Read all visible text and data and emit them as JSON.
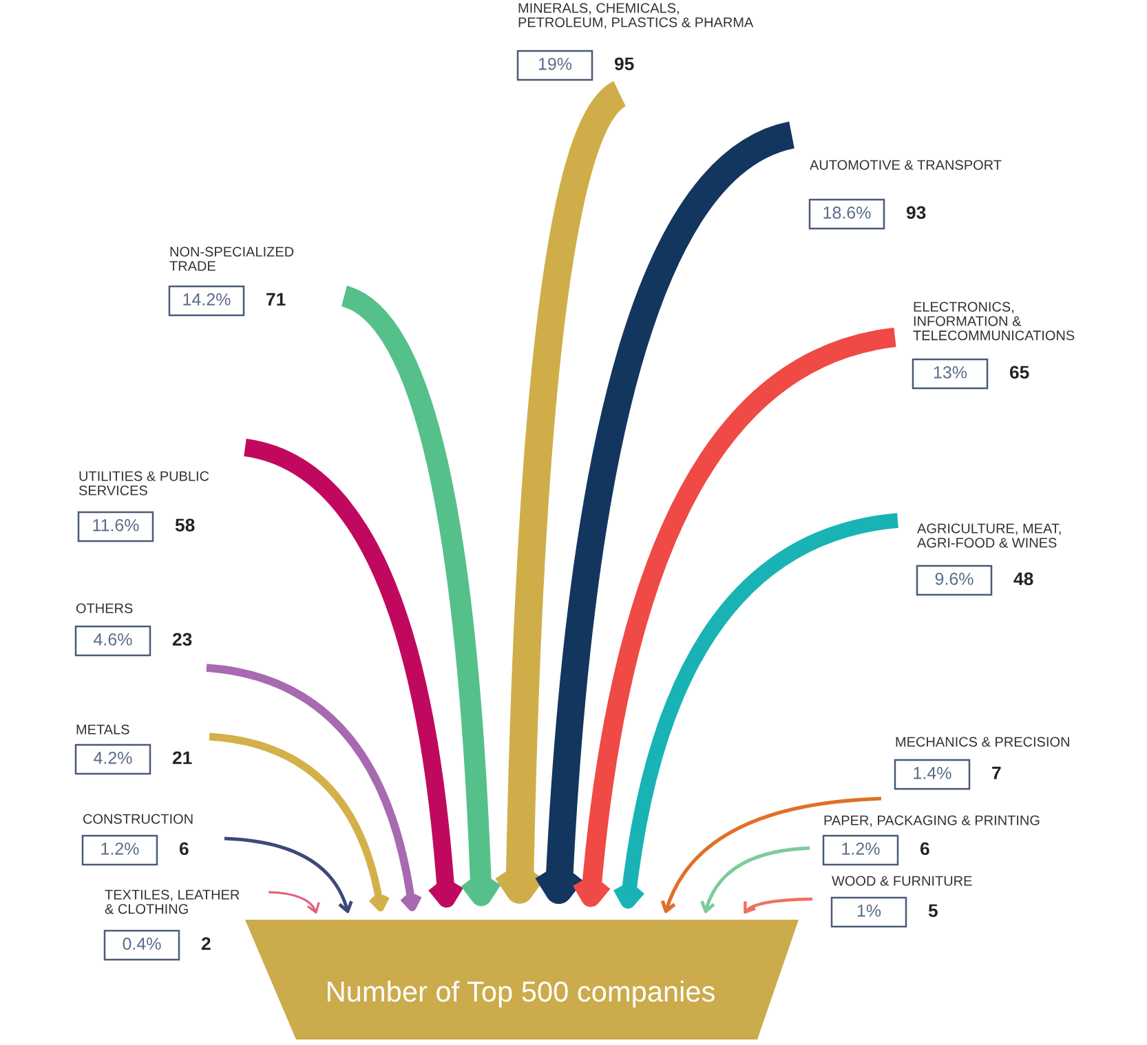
{
  "chart_data": {
    "type": "other",
    "title": "Number of Top 500 companies",
    "data_labels": true,
    "categories": [
      "TEXTILES, LEATHER\n& CLOTHING",
      "CONSTRUCTION",
      "METALS",
      "OTHERS",
      "UTILITIES & PUBLIC\nSERVICES",
      "NON-SPECIALIZED\nTRADE",
      "MINERALS, CHEMICALS,\nPETROLEUM, PLASTICS & PHARMA",
      "AUTOMOTIVE & TRANSPORT",
      "ELECTRONICS,\nINFORMATION &\nTELECOMMUNICATIONS",
      "AGRICULTURE, MEAT,\nAGRI-FOOD & WINES",
      "MECHANICS & PRECISION",
      "PAPER, PACKAGING & PRINTING",
      "WOOD & FURNITURE"
    ],
    "colors": [
      "#e0607a",
      "#3b4a7a",
      "#d4b04a",
      "#a769b0",
      "#c0095e",
      "#55c08a",
      "#cfae4a",
      "#12365e",
      "#ef4a45",
      "#19b3b5",
      "#e07028",
      "#7ecb9a",
      "#f07060"
    ],
    "series": [
      {
        "values": [
          2,
          6,
          21,
          23,
          58,
          71,
          95,
          93,
          65,
          48,
          7,
          6,
          5
        ]
      },
      {
        "values": [
          0.4,
          1.2,
          4.2,
          4.6,
          11.6,
          14.2,
          19,
          18.6,
          13,
          9.6,
          1.4,
          1.2,
          1
        ],
        "value_labels": [
          "0.4%",
          "1.2%",
          "4.2%",
          "4.6%",
          "11.6%",
          "14.2%",
          "19%",
          "18.6%",
          "13%",
          "9.6%",
          "1.4%",
          "1.2%",
          "1%"
        ]
      }
    ]
  }
}
